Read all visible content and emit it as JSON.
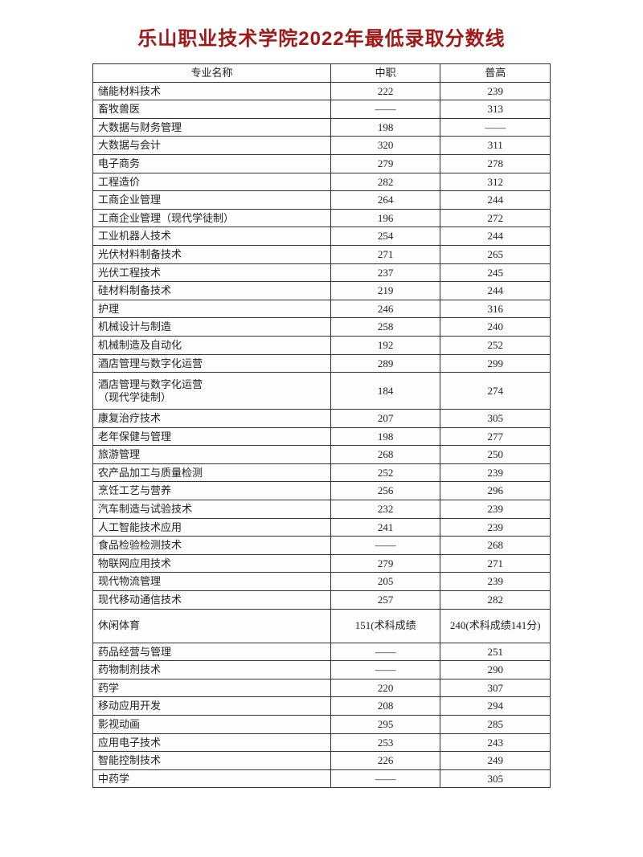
{
  "title": "乐山职业技术学院2022年最低录取分数线",
  "headers": {
    "name": "专业名称",
    "col1": "中职",
    "col2": "普高"
  },
  "rows": [
    {
      "name": "储能材料技术",
      "c1": "222",
      "c2": "239"
    },
    {
      "name": "畜牧兽医",
      "c1": "——",
      "c2": "313"
    },
    {
      "name": "大数据与财务管理",
      "c1": "198",
      "c2": "——"
    },
    {
      "name": "大数据与会计",
      "c1": "320",
      "c2": "311"
    },
    {
      "name": "电子商务",
      "c1": "279",
      "c2": "278"
    },
    {
      "name": "工程造价",
      "c1": "282",
      "c2": "312"
    },
    {
      "name": "工商企业管理",
      "c1": "264",
      "c2": "244"
    },
    {
      "name": "工商企业管理（现代学徒制）",
      "c1": "196",
      "c2": "272"
    },
    {
      "name": "工业机器人技术",
      "c1": "254",
      "c2": "244"
    },
    {
      "name": "光伏材料制备技术",
      "c1": "271",
      "c2": "265"
    },
    {
      "name": "光伏工程技术",
      "c1": "237",
      "c2": "245"
    },
    {
      "name": "硅材料制备技术",
      "c1": "219",
      "c2": "244"
    },
    {
      "name": "护理",
      "c1": "246",
      "c2": "316"
    },
    {
      "name": "机械设计与制造",
      "c1": "258",
      "c2": "240"
    },
    {
      "name": "机械制造及自动化",
      "c1": "192",
      "c2": "252"
    },
    {
      "name": "酒店管理与数字化运营",
      "c1": "289",
      "c2": "299"
    },
    {
      "name": "酒店管理与数字化运营\n（现代学徒制）",
      "c1": "184",
      "c2": "274",
      "tall": true
    },
    {
      "name": "康复治疗技术",
      "c1": "207",
      "c2": "305"
    },
    {
      "name": "老年保健与管理",
      "c1": "198",
      "c2": "277"
    },
    {
      "name": "旅游管理",
      "c1": "268",
      "c2": "250"
    },
    {
      "name": "农产品加工与质量检测",
      "c1": "252",
      "c2": "239"
    },
    {
      "name": "烹饪工艺与营养",
      "c1": "256",
      "c2": "296"
    },
    {
      "name": "汽车制造与试验技术",
      "c1": "232",
      "c2": "239"
    },
    {
      "name": "人工智能技术应用",
      "c1": "241",
      "c2": "239"
    },
    {
      "name": "食品检验检测技术",
      "c1": "——",
      "c2": "268"
    },
    {
      "name": "物联网应用技术",
      "c1": "279",
      "c2": "271"
    },
    {
      "name": "现代物流管理",
      "c1": "205",
      "c2": "239"
    },
    {
      "name": "现代移动通信技术",
      "c1": "257",
      "c2": "282"
    },
    {
      "name": "休闲体育",
      "c1": "151(术科成绩",
      "c2": "240(术科成绩141分)",
      "tall2": true
    },
    {
      "name": "药品经营与管理",
      "c1": "——",
      "c2": "251"
    },
    {
      "name": "药物制剂技术",
      "c1": "——",
      "c2": "290"
    },
    {
      "name": "药学",
      "c1": "220",
      "c2": "307"
    },
    {
      "name": "移动应用开发",
      "c1": "208",
      "c2": "294"
    },
    {
      "name": "影视动画",
      "c1": "295",
      "c2": "285"
    },
    {
      "name": "应用电子技术",
      "c1": "253",
      "c2": "243"
    },
    {
      "name": "智能控制技术",
      "c1": "226",
      "c2": "249"
    },
    {
      "name": "中药学",
      "c1": "——",
      "c2": "305"
    }
  ]
}
